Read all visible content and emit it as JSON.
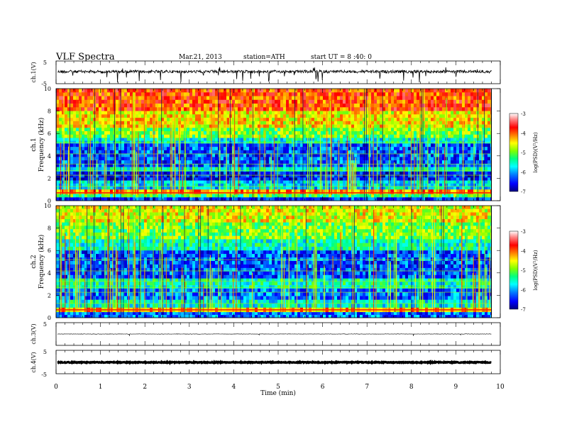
{
  "header": {
    "title": "VLF  Spectra",
    "date": "Mar.21, 2013",
    "station": "station=ATH",
    "start": "start  UT =   8 :40: 0"
  },
  "chart_data": [
    {
      "type": "line",
      "panel": "ch1",
      "ylabel": "ch.1(V)",
      "ylim": [
        -5,
        5
      ],
      "ytick_labels": [
        "5",
        "-5"
      ]
    },
    {
      "type": "heatmap",
      "panel": "spec1",
      "ylabel_channel": "ch.1",
      "ylabel": "Frequency  (kHz)",
      "ylim": [
        0,
        10
      ],
      "ytick_labels": [
        "0",
        "2",
        "4",
        "6",
        "8",
        "10"
      ],
      "colorbar": {
        "label": "log(PSD)(V²/Hz)",
        "range": [
          -7,
          -3
        ],
        "tick_labels": [
          "-3",
          "-4",
          "-5",
          "-6",
          "-7"
        ],
        "colors": [
          "#000080",
          "#0000ff",
          "#0080ff",
          "#00ffff",
          "#00ff80",
          "#80ff00",
          "#ffff00",
          "#ff8000",
          "#ff0000",
          "#ff8080",
          "#ffffff"
        ]
      },
      "bands": [
        {
          "freq": [
            8.0,
            10.0
          ],
          "level": -3.9
        },
        {
          "freq": [
            6.5,
            8.0
          ],
          "level": -4.5
        },
        {
          "freq": [
            5.6,
            6.5
          ],
          "level": -5.0
        },
        {
          "freq": [
            5.1,
            5.6
          ],
          "level": -5.6
        },
        {
          "freq": [
            3.0,
            5.1
          ],
          "level": -6.3
        },
        {
          "freq": [
            2.6,
            3.0
          ],
          "level": -5.6
        },
        {
          "freq": [
            1.8,
            2.6
          ],
          "level": -6.5
        },
        {
          "freq": [
            1.0,
            1.8
          ],
          "level": -5.8
        },
        {
          "freq": [
            0.6,
            1.0
          ],
          "level": -4.2
        },
        {
          "freq": [
            0.3,
            0.6
          ],
          "level": -5.2
        },
        {
          "freq": [
            0.0,
            0.3
          ],
          "level": -6.4
        }
      ]
    },
    {
      "type": "heatmap",
      "panel": "spec2",
      "ylabel_channel": "ch.2",
      "ylabel": "Frequency  (kHz)",
      "ylim": [
        0,
        10
      ],
      "ytick_labels": [
        "0",
        "2",
        "4",
        "6",
        "8",
        "10"
      ],
      "colorbar": {
        "label": "log(PSD)(V²/Hz)",
        "range": [
          -7,
          -3
        ],
        "tick_labels": [
          "-3",
          "-4",
          "-5",
          "-6",
          "-7"
        ]
      },
      "bands": [
        {
          "freq": [
            8.5,
            10.0
          ],
          "level": -4.6
        },
        {
          "freq": [
            7.0,
            8.5
          ],
          "level": -5.0
        },
        {
          "freq": [
            6.0,
            7.0
          ],
          "level": -5.5
        },
        {
          "freq": [
            3.5,
            6.0
          ],
          "level": -6.3
        },
        {
          "freq": [
            2.6,
            3.5
          ],
          "level": -5.5
        },
        {
          "freq": [
            1.6,
            2.6
          ],
          "level": -6.2
        },
        {
          "freq": [
            0.9,
            1.6
          ],
          "level": -5.6
        },
        {
          "freq": [
            0.5,
            0.9
          ],
          "level": -4.3
        },
        {
          "freq": [
            0.0,
            0.5
          ],
          "level": -6.2
        }
      ]
    },
    {
      "type": "line",
      "panel": "ch3",
      "ylabel": "ch.3(V)",
      "ylim": [
        -5,
        5
      ],
      "ytick_labels": [
        "5"
      ]
    },
    {
      "type": "line",
      "panel": "ch4",
      "ylabel": "ch.4(V)",
      "ylim": [
        -5,
        5
      ],
      "ytick_labels": [
        "5",
        "-5"
      ]
    }
  ],
  "xaxis": {
    "label": "Time  (min)",
    "range": [
      0,
      10
    ],
    "data_end": 9.8,
    "tick_labels": [
      "0",
      "1",
      "2",
      "3",
      "4",
      "5",
      "6",
      "7",
      "8",
      "9",
      "10"
    ]
  }
}
